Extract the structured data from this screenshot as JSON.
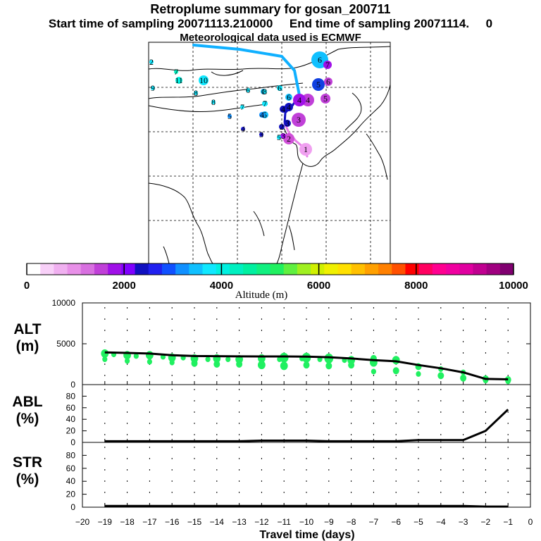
{
  "header": {
    "title": "Retroplume summary for gosan_200711",
    "subtitle": "Start time of sampling 20071113.210000     End time of sampling 20071114.     0",
    "met": "Meteorological data used is ECMWF"
  },
  "colorbar": {
    "label": "Altitude  (m)",
    "ticks": [
      "0",
      "2000",
      "4000",
      "6000",
      "8000",
      "10000"
    ],
    "colors": [
      "#ffffff",
      "#f8d0f8",
      "#f0b0f0",
      "#e890e8",
      "#d870e0",
      "#c040d8",
      "#a010e8",
      "#8000ff",
      "#1010c0",
      "#2020f0",
      "#1050ff",
      "#1090ff",
      "#10c0ff",
      "#10e8ff",
      "#00f0e0",
      "#00f0c0",
      "#00f0a0",
      "#10f080",
      "#20f060",
      "#60f040",
      "#a0f020",
      "#d0f000",
      "#f0f000",
      "#ffe000",
      "#ffc000",
      "#ffa000",
      "#ff8000",
      "#ff5000",
      "#ff0000",
      "#ff0060",
      "#ff0090",
      "#f000a0",
      "#e000a0",
      "#c00090",
      "#a00080",
      "#800070"
    ]
  },
  "map": {
    "markers": [
      {
        "label": "1",
        "color": "#f0a0f0",
        "r": 9
      },
      {
        "label": "2",
        "color": "#d050d8",
        "r": 8
      },
      {
        "label": "3",
        "color": "#c040d8",
        "r": 10
      },
      {
        "label": "4",
        "color": "#c040d8",
        "r": 9
      },
      {
        "label": "4",
        "color": "#a010e8",
        "r": 9
      },
      {
        "label": "5",
        "color": "#1040e0",
        "r": 9
      },
      {
        "label": "5",
        "color": "#c040d8",
        "r": 7
      },
      {
        "label": "6",
        "color": "#10c0ff",
        "r": 12
      },
      {
        "label": "7",
        "color": "#a010e8",
        "r": 6
      },
      {
        "label": "6",
        "color": "#c040d8",
        "r": 6
      },
      {
        "label": "4",
        "color": "#1010c0",
        "r": 6
      },
      {
        "label": "4",
        "color": "#1010c0",
        "r": 5
      },
      {
        "label": "3",
        "color": "#1010c0",
        "r": 5
      },
      {
        "label": "2",
        "color": "#1010c0",
        "r": 4
      },
      {
        "label": "3",
        "color": "#a010e8",
        "r": 4
      },
      {
        "label": "6",
        "color": "#10c0ff",
        "r": 5
      },
      {
        "label": "6",
        "color": "#10e8ff",
        "r": 4
      },
      {
        "label": "5",
        "color": "#10c0ff",
        "r": 5
      },
      {
        "label": "7",
        "color": "#10e8ff",
        "r": 4
      },
      {
        "label": "6",
        "color": "#10c0ff",
        "r": 4
      },
      {
        "label": "10",
        "color": "#10e8ff",
        "r": 7
      },
      {
        "label": "11",
        "color": "#00f0e0",
        "r": 5
      },
      {
        "label": "7",
        "color": "#00f0c0",
        "r": 3
      },
      {
        "label": "8",
        "color": "#10e8ff",
        "r": 3
      },
      {
        "label": "9",
        "color": "#10e8ff",
        "r": 3
      },
      {
        "label": "2",
        "color": "#10e8ff",
        "r": 3
      },
      {
        "label": "8",
        "color": "#10e8ff",
        "r": 3
      },
      {
        "label": "6",
        "color": "#10e8ff",
        "r": 3
      },
      {
        "label": "4",
        "color": "#1090ff",
        "r": 4
      },
      {
        "label": "5",
        "color": "#1090ff",
        "r": 3
      },
      {
        "label": "3",
        "color": "#1010c0",
        "r": 3
      },
      {
        "label": "4",
        "color": "#2020f0",
        "r": 3
      },
      {
        "label": "8",
        "color": "#10e8ff",
        "r": 3
      },
      {
        "label": "7",
        "color": "#10e8ff",
        "r": 3
      },
      {
        "label": "5",
        "color": "#10e8ff",
        "r": 3
      }
    ]
  },
  "chart_data": {
    "type": "line",
    "xlabel": "Travel time (days)",
    "xlim": [
      -20,
      0
    ],
    "xticks": [
      "−20",
      "−19",
      "−18",
      "−17",
      "−16",
      "−15",
      "−14",
      "−13",
      "−12",
      "−11",
      "−10",
      "−9",
      "−8",
      "−7",
      "−6",
      "−5",
      "−4",
      "−3",
      "−2",
      "−1",
      "0"
    ],
    "panels": [
      {
        "label_top": "ALT",
        "label_bottom": "(m)",
        "ylim": [
          0,
          10000
        ],
        "yticks": [
          "10000",
          "5000",
          "0"
        ],
        "line_x": [
          -19,
          -18,
          -17,
          -16,
          -15,
          -14,
          -13,
          -12,
          -11,
          -10,
          -9,
          -8,
          -7,
          -6,
          -5,
          -4,
          -3,
          -2,
          -1
        ],
        "line_y": [
          3950,
          3880,
          3800,
          3600,
          3500,
          3480,
          3460,
          3450,
          3450,
          3420,
          3350,
          3200,
          3000,
          2850,
          2400,
          2000,
          1500,
          700,
          650
        ],
        "scatter_x": [
          -19,
          -19,
          -18.6,
          -18,
          -18,
          -17.6,
          -17,
          -17,
          -16.4,
          -16,
          -16,
          -15.5,
          -15,
          -15,
          -14.4,
          -14,
          -14,
          -13.5,
          -13,
          -13,
          -12,
          -12,
          -11.2,
          -11,
          -11,
          -10.2,
          -10,
          -10,
          -9.4,
          -9,
          -9,
          -8.3,
          -8,
          -8,
          -7,
          -7,
          -7,
          -6,
          -6,
          -5,
          -5,
          -4,
          -4,
          -3,
          -3,
          -2,
          -2,
          -1,
          -1
        ],
        "scatter_y": [
          3800,
          3100,
          3700,
          3600,
          2900,
          3500,
          3600,
          2800,
          3400,
          3300,
          2700,
          3300,
          3200,
          2600,
          3100,
          3200,
          2500,
          3100,
          3100,
          2500,
          3200,
          2400,
          3100,
          3300,
          2300,
          3200,
          3300,
          2400,
          3100,
          3200,
          2300,
          3000,
          3000,
          2400,
          2700,
          1600,
          3200,
          3000,
          1700,
          2200,
          1300,
          1900,
          1100,
          1500,
          800,
          700,
          500,
          600,
          400
        ],
        "scatter_r": [
          6,
          4,
          4,
          6,
          4,
          4,
          6,
          4,
          4,
          6,
          4,
          4,
          6,
          5,
          4,
          6,
          5,
          4,
          6,
          5,
          6,
          6,
          4,
          7,
          6,
          4,
          7,
          5,
          4,
          7,
          5,
          4,
          6,
          5,
          6,
          4,
          5,
          6,
          5,
          5,
          4,
          4,
          5,
          4,
          5,
          5,
          4,
          5,
          4
        ]
      },
      {
        "label_top": "ABL",
        "label_bottom": "(%)",
        "ylim": [
          0,
          100
        ],
        "yticks": [
          "80",
          "60",
          "40",
          "20",
          "0"
        ],
        "line_x": [
          -19,
          -18,
          -17,
          -16,
          -15,
          -14,
          -13,
          -12,
          -11,
          -10,
          -9,
          -8,
          -7,
          -6,
          -5,
          -4,
          -3,
          -2,
          -1
        ],
        "line_y": [
          2,
          2,
          2,
          2,
          2,
          2,
          2,
          3,
          3,
          3,
          2,
          2,
          2,
          2,
          4,
          4,
          4,
          20,
          57
        ]
      },
      {
        "label_top": "STR",
        "label_bottom": "(%)",
        "ylim": [
          0,
          100
        ],
        "yticks": [
          "80",
          "60",
          "40",
          "20",
          "0"
        ],
        "line_x": [
          -19,
          -18,
          -17,
          -16,
          -15,
          -14,
          -13,
          -12,
          -11,
          -10,
          -9,
          -8,
          -7,
          -6,
          -5,
          -4,
          -3,
          -2,
          -1
        ],
        "line_y": [
          2,
          2,
          2,
          2,
          2,
          2,
          2,
          2,
          2,
          2,
          2,
          2,
          2,
          2,
          2,
          2,
          2,
          1,
          1
        ]
      }
    ]
  }
}
